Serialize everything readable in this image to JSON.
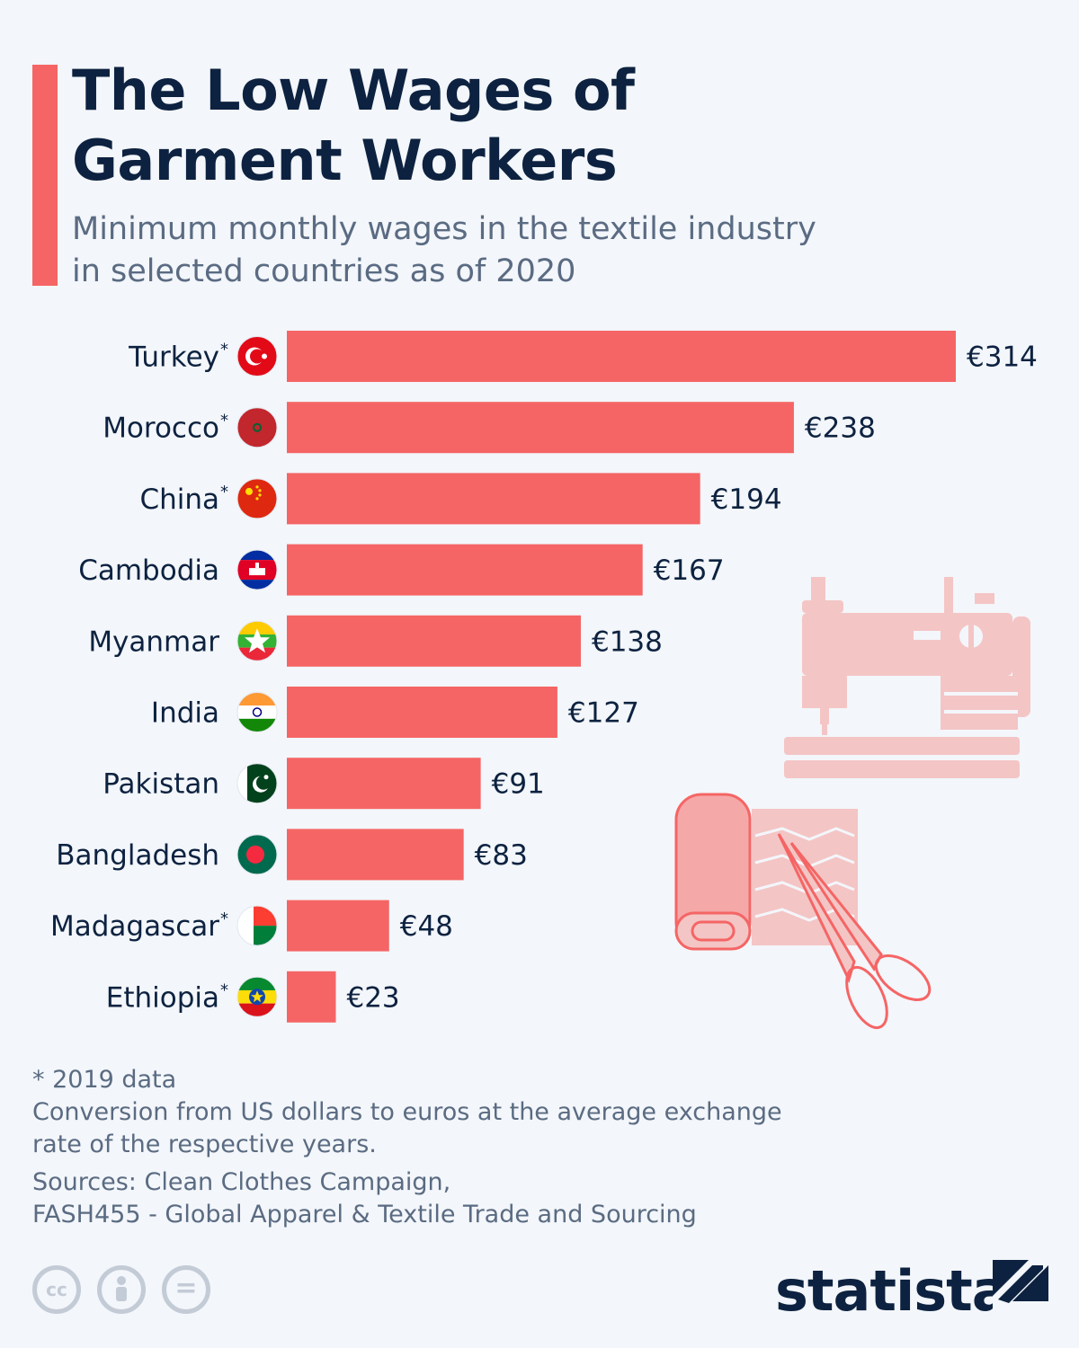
{
  "title": [
    "The Low Wages of",
    "Garment Workers"
  ],
  "subtitle": [
    "Minimum monthly wages in the textile industry",
    "in selected countries as of 2020"
  ],
  "colors": {
    "accent": "#f56565",
    "bar": "#f56565",
    "text_dark": "#0d2240",
    "text_muted": "#5a6b82",
    "background": "#f3f6fa",
    "illustration": "#f4c5c5"
  },
  "chart_data": {
    "type": "bar",
    "orientation": "horizontal",
    "title": "The Low Wages of Garment Workers",
    "subtitle": "Minimum monthly wages in the textile industry in selected countries as of 2020",
    "categories": [
      "Turkey",
      "Morocco",
      "China",
      "Cambodia",
      "Myanmar",
      "India",
      "Pakistan",
      "Bangladesh",
      "Madagascar",
      "Ethiopia"
    ],
    "markers": [
      "*",
      "*",
      "*",
      "",
      "",
      "",
      "",
      "",
      "*",
      "*"
    ],
    "flags": [
      "turkey-flag-icon",
      "morocco-flag-icon",
      "china-flag-icon",
      "cambodia-flag-icon",
      "myanmar-flag-icon",
      "india-flag-icon",
      "pakistan-flag-icon",
      "bangladesh-flag-icon",
      "madagascar-flag-icon",
      "ethiopia-flag-icon"
    ],
    "values": [
      314,
      238,
      194,
      167,
      138,
      127,
      91,
      83,
      48,
      23
    ],
    "value_labels": [
      "€314",
      "€238",
      "€194",
      "€167",
      "€138",
      "€127",
      "€91",
      "€83",
      "€48",
      "€23"
    ],
    "unit": "€",
    "xlim": [
      0,
      314
    ],
    "grid": false,
    "legend": "none"
  },
  "illustrations": [
    "sewing-machine-icon",
    "fabric-roll-icon",
    "scissors-icon"
  ],
  "footnotes": {
    "marker_note": "* 2019 data",
    "conversion": [
      "Conversion from US dollars to euros at the average exchange",
      "rate of the respective years."
    ],
    "sources": [
      "Sources: Clean Clothes Campaign,",
      "FASH455 - Global Apparel & Textile Trade and Sourcing"
    ]
  },
  "license_icons": [
    "cc-icon",
    "by-icon",
    "nd-icon"
  ],
  "license_labels": [
    "cc",
    "",
    "="
  ],
  "brand": "statista"
}
